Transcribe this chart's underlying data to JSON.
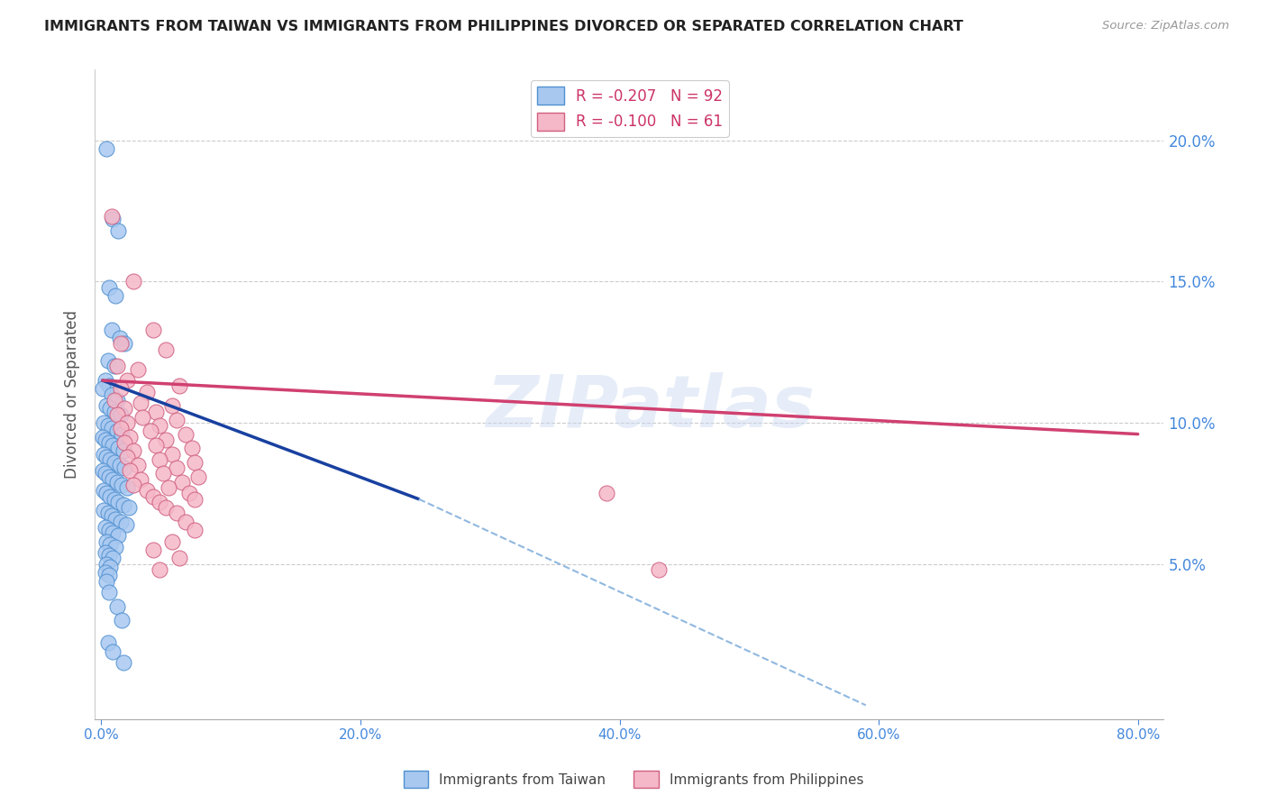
{
  "title": "IMMIGRANTS FROM TAIWAN VS IMMIGRANTS FROM PHILIPPINES DIVORCED OR SEPARATED CORRELATION CHART",
  "source": "Source: ZipAtlas.com",
  "ylabel": "Divorced or Separated",
  "taiwan_R": "-0.207",
  "taiwan_N": "92",
  "philippines_R": "-0.100",
  "philippines_N": "61",
  "taiwan_color": "#a8c8f0",
  "taiwan_edge_color": "#5090d0",
  "philippines_color": "#f5b8c8",
  "philippines_edge_color": "#d06080",
  "taiwan_line_color": "#1840a0",
  "philippines_line_color": "#d04070",
  "dashed_line_color": "#90b8e0",
  "watermark": "ZIPatlas",
  "taiwan_scatter": [
    [
      0.004,
      0.197
    ],
    [
      0.009,
      0.172
    ],
    [
      0.013,
      0.168
    ],
    [
      0.006,
      0.148
    ],
    [
      0.011,
      0.145
    ],
    [
      0.008,
      0.133
    ],
    [
      0.014,
      0.13
    ],
    [
      0.018,
      0.128
    ],
    [
      0.005,
      0.122
    ],
    [
      0.01,
      0.12
    ],
    [
      0.003,
      0.115
    ],
    [
      0.006,
      0.113
    ],
    [
      0.001,
      0.112
    ],
    [
      0.008,
      0.11
    ],
    [
      0.012,
      0.108
    ],
    [
      0.004,
      0.106
    ],
    [
      0.007,
      0.105
    ],
    [
      0.01,
      0.104
    ],
    [
      0.015,
      0.103
    ],
    [
      0.002,
      0.1
    ],
    [
      0.005,
      0.099
    ],
    [
      0.008,
      0.098
    ],
    [
      0.012,
      0.097
    ],
    [
      0.016,
      0.096
    ],
    [
      0.001,
      0.095
    ],
    [
      0.003,
      0.094
    ],
    [
      0.006,
      0.093
    ],
    [
      0.009,
      0.092
    ],
    [
      0.013,
      0.091
    ],
    [
      0.017,
      0.09
    ],
    [
      0.002,
      0.089
    ],
    [
      0.004,
      0.088
    ],
    [
      0.007,
      0.087
    ],
    [
      0.01,
      0.086
    ],
    [
      0.014,
      0.085
    ],
    [
      0.018,
      0.084
    ],
    [
      0.001,
      0.083
    ],
    [
      0.003,
      0.082
    ],
    [
      0.006,
      0.081
    ],
    [
      0.009,
      0.08
    ],
    [
      0.012,
      0.079
    ],
    [
      0.016,
      0.078
    ],
    [
      0.02,
      0.077
    ],
    [
      0.002,
      0.076
    ],
    [
      0.004,
      0.075
    ],
    [
      0.007,
      0.074
    ],
    [
      0.01,
      0.073
    ],
    [
      0.013,
      0.072
    ],
    [
      0.017,
      0.071
    ],
    [
      0.021,
      0.07
    ],
    [
      0.002,
      0.069
    ],
    [
      0.005,
      0.068
    ],
    [
      0.008,
      0.067
    ],
    [
      0.011,
      0.066
    ],
    [
      0.015,
      0.065
    ],
    [
      0.019,
      0.064
    ],
    [
      0.003,
      0.063
    ],
    [
      0.006,
      0.062
    ],
    [
      0.009,
      0.061
    ],
    [
      0.013,
      0.06
    ],
    [
      0.004,
      0.058
    ],
    [
      0.007,
      0.057
    ],
    [
      0.011,
      0.056
    ],
    [
      0.003,
      0.054
    ],
    [
      0.006,
      0.053
    ],
    [
      0.009,
      0.052
    ],
    [
      0.004,
      0.05
    ],
    [
      0.007,
      0.049
    ],
    [
      0.003,
      0.047
    ],
    [
      0.006,
      0.046
    ],
    [
      0.004,
      0.044
    ],
    [
      0.006,
      0.04
    ],
    [
      0.012,
      0.035
    ],
    [
      0.016,
      0.03
    ],
    [
      0.005,
      0.022
    ],
    [
      0.009,
      0.019
    ],
    [
      0.017,
      0.015
    ]
  ],
  "philippines_scatter": [
    [
      0.008,
      0.173
    ],
    [
      0.025,
      0.15
    ],
    [
      0.04,
      0.133
    ],
    [
      0.015,
      0.128
    ],
    [
      0.05,
      0.126
    ],
    [
      0.012,
      0.12
    ],
    [
      0.028,
      0.119
    ],
    [
      0.02,
      0.115
    ],
    [
      0.06,
      0.113
    ],
    [
      0.015,
      0.112
    ],
    [
      0.035,
      0.111
    ],
    [
      0.01,
      0.108
    ],
    [
      0.03,
      0.107
    ],
    [
      0.055,
      0.106
    ],
    [
      0.018,
      0.105
    ],
    [
      0.042,
      0.104
    ],
    [
      0.012,
      0.103
    ],
    [
      0.032,
      0.102
    ],
    [
      0.058,
      0.101
    ],
    [
      0.02,
      0.1
    ],
    [
      0.045,
      0.099
    ],
    [
      0.015,
      0.098
    ],
    [
      0.038,
      0.097
    ],
    [
      0.065,
      0.096
    ],
    [
      0.022,
      0.095
    ],
    [
      0.05,
      0.094
    ],
    [
      0.018,
      0.093
    ],
    [
      0.042,
      0.092
    ],
    [
      0.07,
      0.091
    ],
    [
      0.025,
      0.09
    ],
    [
      0.055,
      0.089
    ],
    [
      0.02,
      0.088
    ],
    [
      0.045,
      0.087
    ],
    [
      0.072,
      0.086
    ],
    [
      0.028,
      0.085
    ],
    [
      0.058,
      0.084
    ],
    [
      0.022,
      0.083
    ],
    [
      0.048,
      0.082
    ],
    [
      0.075,
      0.081
    ],
    [
      0.03,
      0.08
    ],
    [
      0.062,
      0.079
    ],
    [
      0.025,
      0.078
    ],
    [
      0.052,
      0.077
    ],
    [
      0.035,
      0.076
    ],
    [
      0.068,
      0.075
    ],
    [
      0.04,
      0.074
    ],
    [
      0.072,
      0.073
    ],
    [
      0.045,
      0.072
    ],
    [
      0.05,
      0.07
    ],
    [
      0.058,
      0.068
    ],
    [
      0.065,
      0.065
    ],
    [
      0.072,
      0.062
    ],
    [
      0.055,
      0.058
    ],
    [
      0.04,
      0.055
    ],
    [
      0.06,
      0.052
    ],
    [
      0.045,
      0.048
    ],
    [
      0.39,
      0.075
    ],
    [
      0.43,
      0.048
    ]
  ],
  "taiwan_line_x": [
    0.001,
    0.245
  ],
  "taiwan_line_y": [
    0.115,
    0.073
  ],
  "philippines_line_x": [
    0.001,
    0.8
  ],
  "philippines_line_y": [
    0.115,
    0.096
  ],
  "dashed_line_x": [
    0.245,
    0.59
  ],
  "dashed_line_y": [
    0.073,
    0.0
  ],
  "xlim": [
    -0.005,
    0.82
  ],
  "ylim": [
    -0.005,
    0.225
  ],
  "y_tick_positions": [
    0.05,
    0.1,
    0.15,
    0.2
  ],
  "y_tick_labels": [
    "5.0%",
    "10.0%",
    "15.0%",
    "20.0%"
  ],
  "x_tick_positions": [
    0.0,
    0.2,
    0.4,
    0.6,
    0.8
  ],
  "x_tick_labels": [
    "0.0%",
    "20.0%",
    "40.0%",
    "60.0%",
    "80.0%"
  ],
  "background_color": "#ffffff",
  "grid_color": "#cccccc",
  "title_color": "#222222",
  "axis_color": "#4488dd",
  "legend_taiwan_label": "Immigrants from Taiwan",
  "legend_philippines_label": "Immigrants from Philippines"
}
